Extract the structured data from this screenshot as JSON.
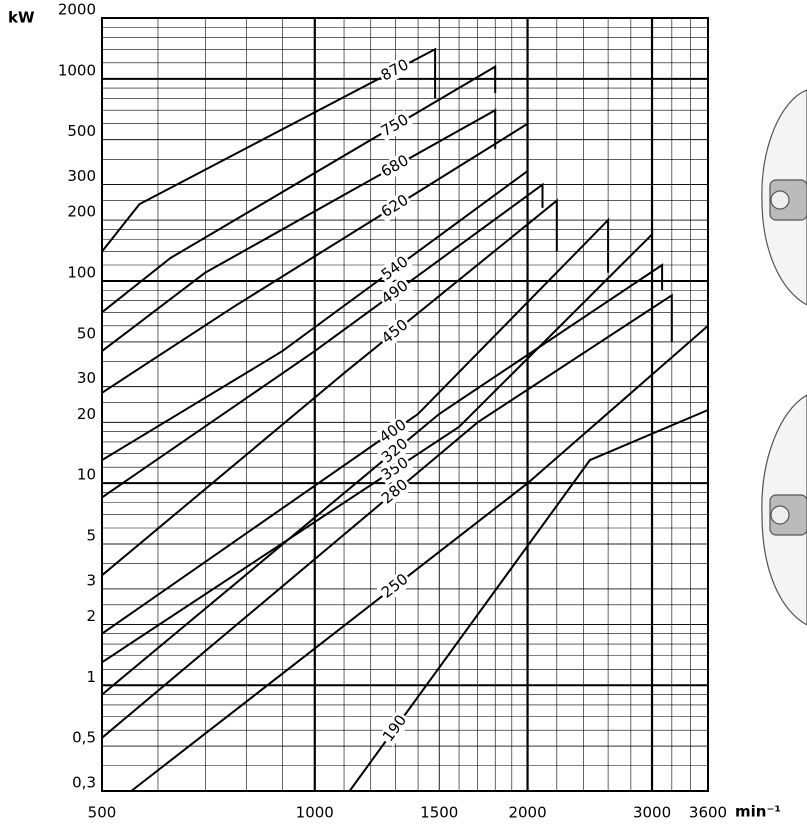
{
  "chart_data": {
    "type": "line",
    "log_x": true,
    "log_y": true,
    "grid": true,
    "color": "#000000",
    "xlabel": "min⁻¹",
    "ylabel": "kW",
    "xlim": [
      500,
      3600
    ],
    "xticks": [
      500,
      1000,
      1500,
      2000,
      3000,
      3600
    ],
    "ylim": [
      0.3,
      2000
    ],
    "yticks": [
      2000,
      1000,
      500,
      300,
      200,
      100,
      50,
      30,
      20,
      10,
      5,
      3,
      2,
      1,
      {
        "value": 0.5,
        "label": "0,5"
      },
      {
        "value": 0.3,
        "label": "0,3"
      }
    ],
    "series": [
      {
        "name": "870",
        "x": [
          500,
          565,
          1480,
          1480
        ],
        "values": [
          140,
          240,
          1400,
          800
        ]
      },
      {
        "name": "750",
        "x": [
          500,
          625,
          1800,
          1800
        ],
        "values": [
          70,
          130,
          1150,
          850
        ]
      },
      {
        "name": "680",
        "x": [
          500,
          700,
          1800,
          1800
        ],
        "values": [
          45,
          110,
          700,
          450
        ]
      },
      {
        "name": "620",
        "x": [
          500,
          770,
          2000
        ],
        "values": [
          28,
          75,
          600
        ]
      },
      {
        "name": "540",
        "x": [
          500,
          900,
          2000
        ],
        "values": [
          13,
          45,
          350
        ]
      },
      {
        "name": "490",
        "x": [
          500,
          1000,
          2100,
          2100
        ],
        "values": [
          8.5,
          45,
          300,
          230
        ]
      },
      {
        "name": "450",
        "x": [
          500,
          1100,
          2200,
          2200
        ],
        "values": [
          3.5,
          35,
          250,
          140
        ]
      },
      {
        "name": "400",
        "x": [
          500,
          1400,
          2600,
          2600
        ],
        "values": [
          1.8,
          22,
          200,
          110
        ]
      },
      {
        "name": "350",
        "x": [
          500,
          1600,
          3000
        ],
        "values": [
          1.3,
          19,
          170
        ]
      },
      {
        "name": "320",
        "x": [
          500,
          1500,
          3100,
          3100
        ],
        "values": [
          0.9,
          22,
          120,
          90
        ]
      },
      {
        "name": "280",
        "x": [
          500,
          1700,
          3200,
          3200
        ],
        "values": [
          0.55,
          20,
          85,
          50
        ]
      },
      {
        "name": "250",
        "x": [
          550,
          2000,
          3600
        ],
        "values": [
          0.3,
          10,
          60
        ]
      },
      {
        "name": "190",
        "x": [
          1120,
          2450,
          3600
        ],
        "values": [
          0.3,
          13,
          23
        ]
      }
    ]
  }
}
